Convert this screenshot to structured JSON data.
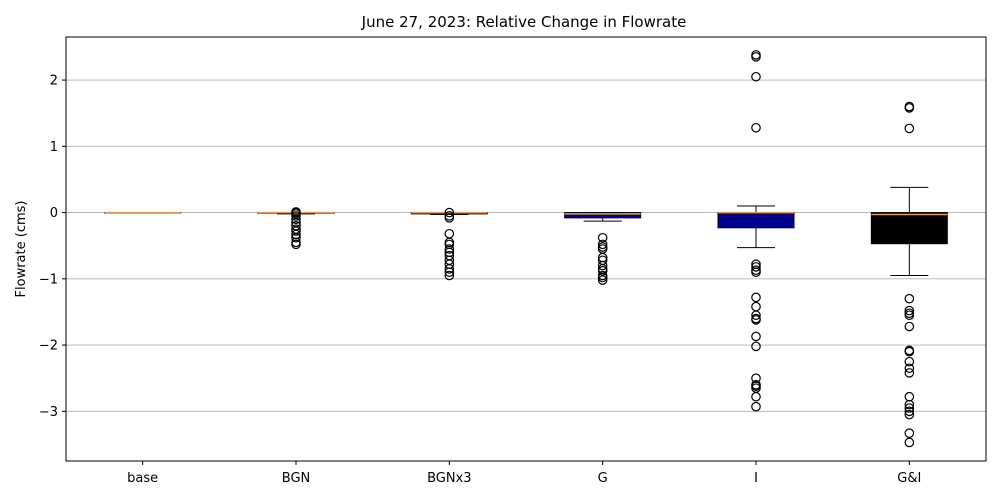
{
  "chart_data": {
    "type": "box",
    "title": "June 27, 2023: Relative Change in Flowrate",
    "xlabel": "",
    "ylabel": "Flowrate (cms)",
    "ylim": [
      -3.75,
      2.65
    ],
    "yticks": [
      2,
      1,
      0,
      -1,
      -2,
      -3
    ],
    "ytick_labels": [
      "2",
      "1",
      "0",
      "−1",
      "−2",
      "−3"
    ],
    "grid": "horizontal",
    "median_color": "#e8955a",
    "categories": [
      "base",
      "BGN",
      "BGNx3",
      "G",
      "I",
      "G&I"
    ],
    "series": [
      {
        "category": "base",
        "fill": "#ffffff",
        "q1": 0,
        "median": 0,
        "q3": 0,
        "whisker_low": 0,
        "whisker_high": 0,
        "outliers": []
      },
      {
        "category": "BGN",
        "fill": "#ffffff",
        "q1": -0.01,
        "median": 0,
        "q3": 0,
        "whisker_low": -0.02,
        "whisker_high": 0,
        "outliers": [
          0.01,
          0.0,
          -0.02,
          -0.05,
          -0.1,
          -0.15,
          -0.2,
          -0.25,
          -0.28,
          -0.33,
          -0.38,
          -0.45,
          -0.48
        ]
      },
      {
        "category": "BGNx3",
        "fill": "#ffffff",
        "q1": -0.02,
        "median": 0,
        "q3": 0,
        "whisker_low": -0.03,
        "whisker_high": 0,
        "outliers": [
          0.0,
          -0.05,
          -0.08,
          -0.32,
          -0.45,
          -0.48,
          -0.55,
          -0.6,
          -0.65,
          -0.72,
          -0.78,
          -0.85,
          -0.9,
          -0.95
        ]
      },
      {
        "category": "G",
        "fill": "#00008b",
        "q1": -0.08,
        "median": -0.02,
        "q3": 0,
        "whisker_low": -0.13,
        "whisker_high": 0,
        "outliers": [
          -0.38,
          -0.48,
          -0.52,
          -0.55,
          -0.68,
          -0.72,
          -0.8,
          -0.85,
          -0.88,
          -0.95,
          -0.98,
          -1.02
        ]
      },
      {
        "category": "I",
        "fill": "#00008b",
        "q1": -0.23,
        "median": 0,
        "q3": 0,
        "whisker_low": -0.53,
        "whisker_high": 0.1,
        "outliers": [
          2.38,
          2.35,
          2.05,
          1.28,
          -0.78,
          -0.82,
          -0.87,
          -0.9,
          -1.28,
          -1.42,
          -1.55,
          -1.6,
          -1.62,
          -1.87,
          -2.02,
          -2.5,
          -2.6,
          -2.62,
          -2.65,
          -2.78,
          -2.93
        ]
      },
      {
        "category": "G&I",
        "fill": "#000000",
        "q1": -0.47,
        "median": -0.03,
        "q3": 0,
        "whisker_low": -0.95,
        "whisker_high": 0.38,
        "outliers": [
          1.6,
          1.58,
          1.27,
          -1.3,
          -1.48,
          -1.52,
          -1.55,
          -1.72,
          -2.08,
          -2.1,
          -2.25,
          -2.35,
          -2.42,
          -2.78,
          -2.9,
          -2.95,
          -3.0,
          -3.05,
          -3.33,
          -3.47
        ]
      }
    ]
  }
}
